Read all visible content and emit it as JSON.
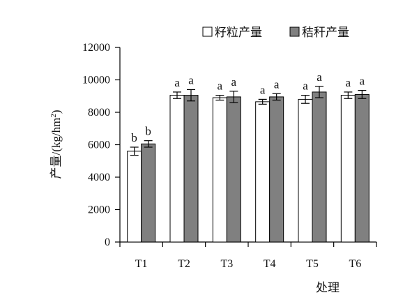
{
  "chart_data": {
    "type": "bar",
    "categories": [
      "T1",
      "T2",
      "T3",
      "T4",
      "T5",
      "T6"
    ],
    "series": [
      {
        "name": "籽粒产量",
        "color": "#ffffff",
        "values": [
          5600,
          9050,
          8900,
          8650,
          8800,
          9050
        ],
        "errors": [
          250,
          200,
          150,
          150,
          250,
          200
        ],
        "significance": [
          "b",
          "a",
          "a",
          "a",
          "a",
          "a"
        ]
      },
      {
        "name": "秸秆产量",
        "color": "#808080",
        "values": [
          6050,
          9050,
          8950,
          8950,
          9250,
          9100
        ],
        "errors": [
          200,
          350,
          350,
          200,
          350,
          250
        ],
        "significance": [
          "b",
          "a",
          "a",
          "a",
          "a",
          "a"
        ]
      }
    ],
    "ylabel_main": "产量/(kg/hm",
    "ylabel_sup": "2",
    "ylabel_close": ")",
    "xlabel": "处理",
    "ylim": [
      0,
      12000
    ],
    "yticks": [
      0,
      2000,
      4000,
      6000,
      8000,
      10000,
      12000
    ],
    "legend_position": "top-right",
    "grid": false
  }
}
